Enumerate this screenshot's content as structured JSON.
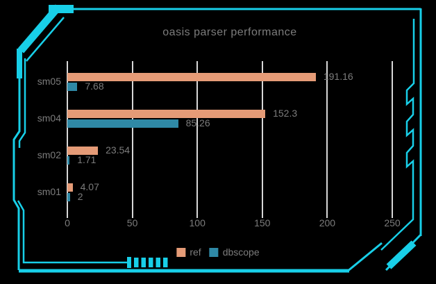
{
  "window": {
    "background": "#000000"
  },
  "frame": {
    "accent_color": "#18cfe8"
  },
  "colors": {
    "text": "#7c7c7c",
    "gridline": "#d8d8d8"
  },
  "chart_data": {
    "type": "bar",
    "orientation": "horizontal",
    "title": "oasis parser performance",
    "categories": [
      "sm05",
      "sm04",
      "sm02",
      "sm01"
    ],
    "series": [
      {
        "name": "ref",
        "color": "#e59b77",
        "values": [
          191.16,
          152.3,
          23.54,
          4.07
        ],
        "labels": [
          "191.16",
          "152.3",
          "23.54",
          "4.07"
        ]
      },
      {
        "name": "dbscope",
        "color": "#2f89a6",
        "values": [
          7.68,
          85.26,
          1.71,
          2
        ],
        "labels": [
          "7.68",
          "85.26",
          "1.71",
          "2"
        ]
      }
    ],
    "x_ticks": [
      0,
      50,
      100,
      150,
      200,
      250
    ],
    "xlim": [
      0,
      250
    ],
    "grid": true,
    "legend_position": "bottom",
    "value_labels_shown": true
  }
}
